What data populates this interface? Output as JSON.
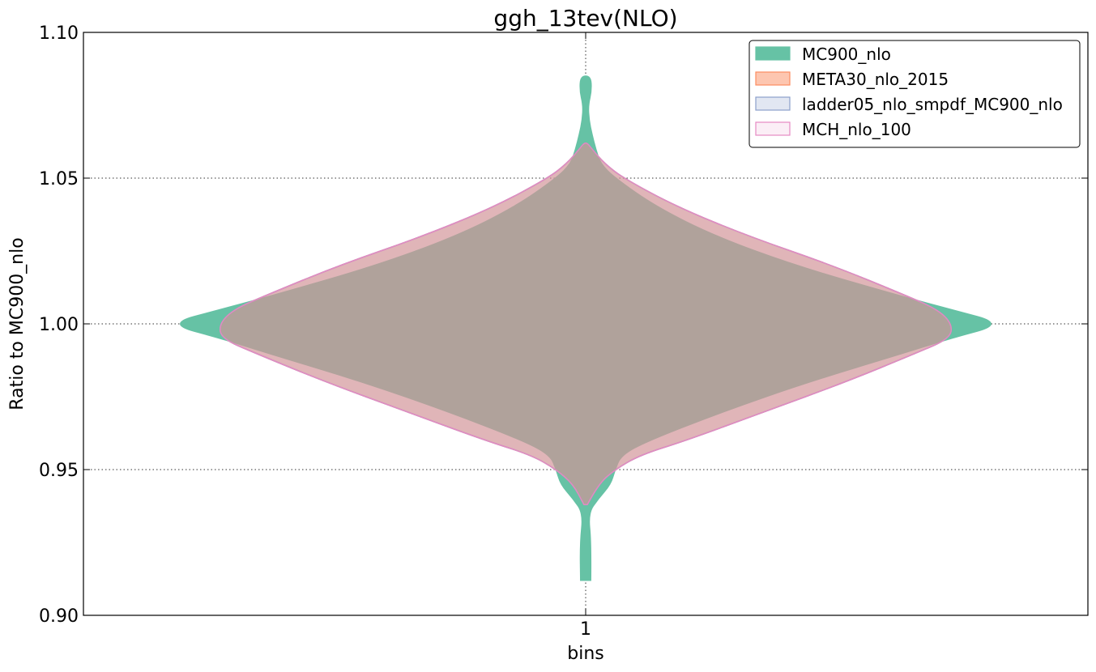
{
  "chart_data": {
    "type": "violin",
    "title": "ggh_13tev(NLO)",
    "xlabel": "bins",
    "ylabel": "Ratio to MC900_nlo",
    "categories": [
      "1"
    ],
    "ylim": [
      0.9,
      1.1
    ],
    "yticks": [
      "0.90",
      "0.95",
      "1.00",
      "1.05",
      "1.10"
    ],
    "grid": true,
    "legend_position": "top-right",
    "series": [
      {
        "name": "MC900_nlo",
        "color": "#66c2a5",
        "edge": "#66c2a5",
        "alpha": 1.0,
        "range": [
          0.912,
          1.085
        ],
        "profile": [
          [
            0.912,
            0.012
          ],
          [
            0.925,
            0.013
          ],
          [
            0.935,
            0.006
          ],
          [
            0.94,
            0.03
          ],
          [
            0.945,
            0.06
          ],
          [
            0.95,
            0.07
          ],
          [
            0.955,
            0.085
          ],
          [
            0.96,
            0.15
          ],
          [
            0.97,
            0.33
          ],
          [
            0.98,
            0.53
          ],
          [
            0.99,
            0.76
          ],
          [
            0.995,
            0.87
          ],
          [
            1.0,
            1.0
          ],
          [
            1.005,
            0.87
          ],
          [
            1.01,
            0.74
          ],
          [
            1.02,
            0.5
          ],
          [
            1.03,
            0.31
          ],
          [
            1.04,
            0.17
          ],
          [
            1.05,
            0.07
          ],
          [
            1.055,
            0.035
          ],
          [
            1.06,
            0.024
          ],
          [
            1.065,
            0.015
          ],
          [
            1.07,
            0.008
          ],
          [
            1.075,
            0.006
          ],
          [
            1.08,
            0.014
          ],
          [
            1.085,
            0.012
          ]
        ]
      },
      {
        "name": "META30_nlo_2015",
        "color": "#fc8d62",
        "edge": "#fc8d62",
        "alpha": 0.5,
        "range": [
          0.938,
          1.062
        ],
        "profile": [
          [
            0.938,
            0.004
          ],
          [
            0.945,
            0.03
          ],
          [
            0.95,
            0.07
          ],
          [
            0.955,
            0.13
          ],
          [
            0.96,
            0.24
          ],
          [
            0.97,
            0.43
          ],
          [
            0.98,
            0.62
          ],
          [
            0.99,
            0.79
          ],
          [
            0.995,
            0.87
          ],
          [
            1.0,
            0.875
          ],
          [
            1.005,
            0.84
          ],
          [
            1.01,
            0.76
          ],
          [
            1.02,
            0.59
          ],
          [
            1.03,
            0.39
          ],
          [
            1.04,
            0.22
          ],
          [
            1.05,
            0.09
          ],
          [
            1.055,
            0.045
          ],
          [
            1.06,
            0.015
          ],
          [
            1.062,
            0.004
          ]
        ]
      },
      {
        "name": "ladder05_nlo_smpdf_MC900_nlo",
        "color": "#8da0cb",
        "edge": "#8da0cb",
        "alpha": 0.25,
        "range": [
          0.938,
          1.062
        ],
        "profile": [
          [
            0.938,
            0.004
          ],
          [
            0.945,
            0.03
          ],
          [
            0.95,
            0.07
          ],
          [
            0.955,
            0.13
          ],
          [
            0.96,
            0.24
          ],
          [
            0.97,
            0.43
          ],
          [
            0.98,
            0.62
          ],
          [
            0.99,
            0.79
          ],
          [
            0.995,
            0.87
          ],
          [
            1.0,
            0.875
          ],
          [
            1.005,
            0.84
          ],
          [
            1.01,
            0.76
          ],
          [
            1.02,
            0.59
          ],
          [
            1.03,
            0.39
          ],
          [
            1.04,
            0.22
          ],
          [
            1.05,
            0.09
          ],
          [
            1.055,
            0.045
          ],
          [
            1.06,
            0.015
          ],
          [
            1.062,
            0.004
          ]
        ]
      },
      {
        "name": "MCH_nlo_100",
        "color": "#e78ac3",
        "edge": "#e78ac3",
        "alpha": 0.15,
        "range": [
          0.938,
          1.062
        ],
        "profile": [
          [
            0.938,
            0.004
          ],
          [
            0.945,
            0.03
          ],
          [
            0.95,
            0.07
          ],
          [
            0.955,
            0.13
          ],
          [
            0.96,
            0.24
          ],
          [
            0.97,
            0.43
          ],
          [
            0.98,
            0.62
          ],
          [
            0.99,
            0.79
          ],
          [
            0.995,
            0.87
          ],
          [
            1.0,
            0.875
          ],
          [
            1.005,
            0.84
          ],
          [
            1.01,
            0.76
          ],
          [
            1.02,
            0.59
          ],
          [
            1.03,
            0.39
          ],
          [
            1.04,
            0.22
          ],
          [
            1.05,
            0.09
          ],
          [
            1.055,
            0.045
          ],
          [
            1.06,
            0.015
          ],
          [
            1.062,
            0.004
          ]
        ]
      }
    ]
  }
}
